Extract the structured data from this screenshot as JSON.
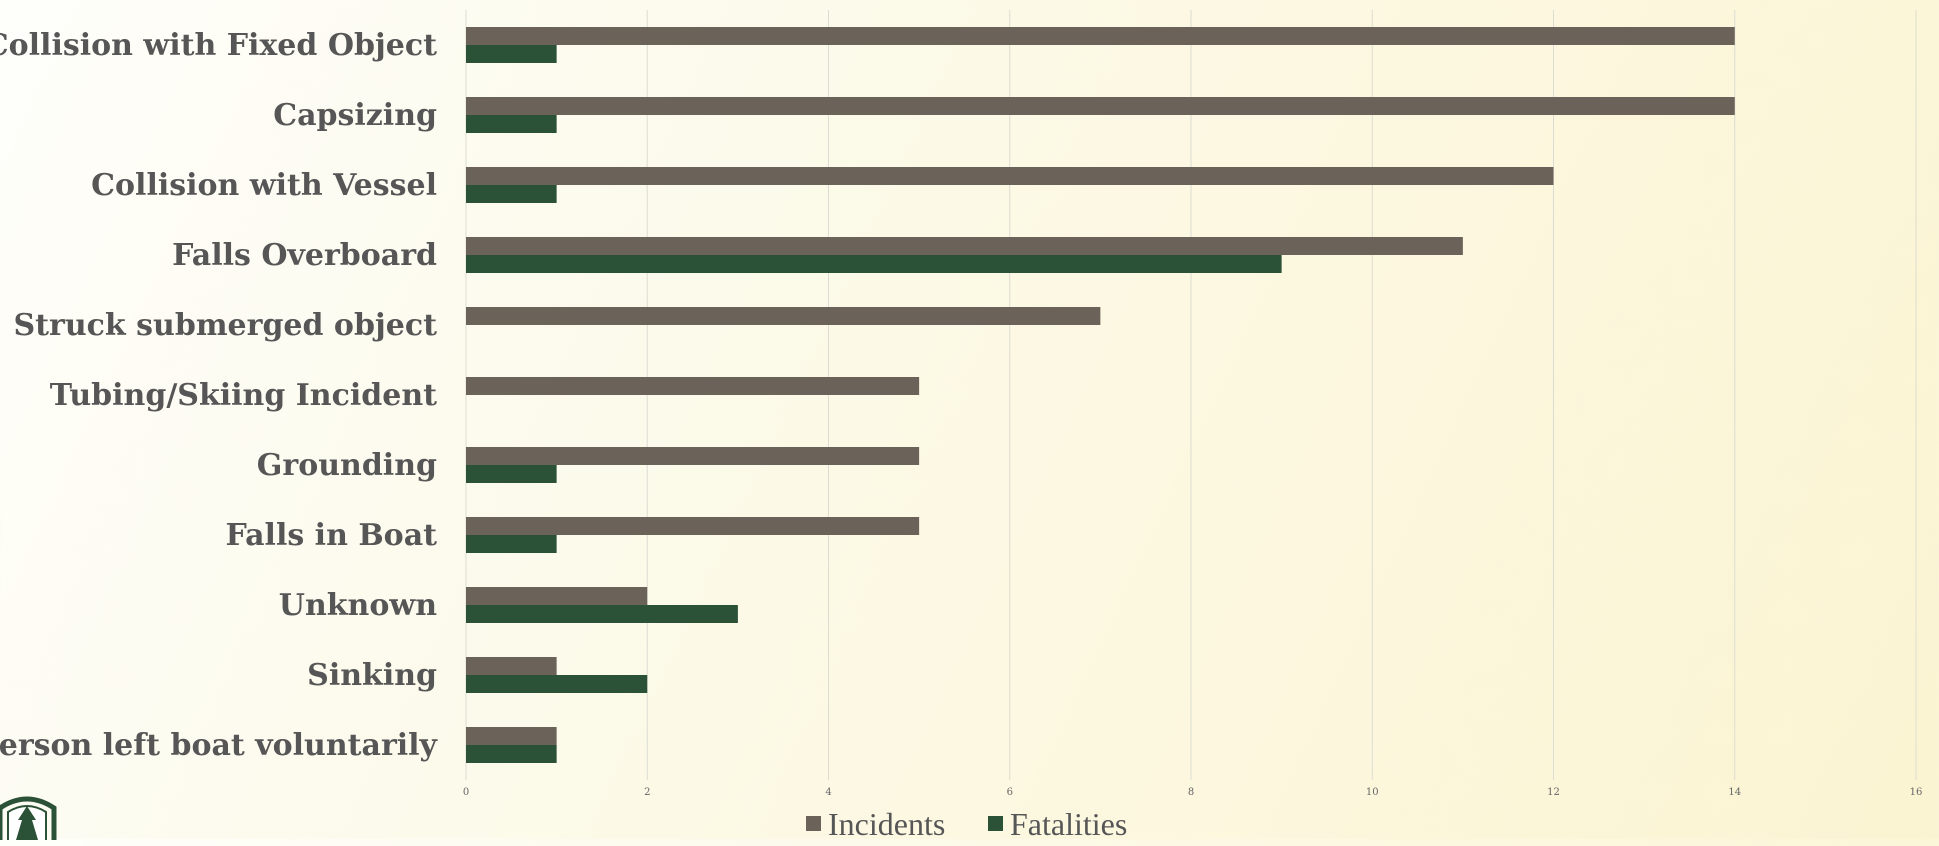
{
  "chart_data": {
    "type": "bar",
    "orientation": "horizontal",
    "categories": [
      "Collision with Fixed Object",
      "Capsizing",
      "Collision with Vessel",
      "Falls Overboard",
      "Struck submerged object",
      "Tubing/Skiing Incident",
      "Grounding",
      "Falls in Boat",
      "Unknown",
      "Sinking",
      "Person left boat voluntarily"
    ],
    "series": [
      {
        "name": "Incidents",
        "color": "#6b6259",
        "values": [
          14,
          14,
          12,
          11,
          7,
          5,
          5,
          5,
          2,
          1,
          1
        ]
      },
      {
        "name": "Fatalities",
        "color": "#2b5136",
        "values": [
          1,
          1,
          1,
          9,
          0,
          0,
          1,
          1,
          3,
          2,
          1
        ]
      }
    ],
    "xlim": [
      0,
      16
    ],
    "xticks": [
      0,
      2,
      4,
      6,
      8,
      10,
      12,
      14,
      16
    ],
    "grid": true,
    "legend_position": "bottom"
  },
  "logo": {
    "icon": "tree-seal-icon",
    "color": "#2b5136"
  }
}
